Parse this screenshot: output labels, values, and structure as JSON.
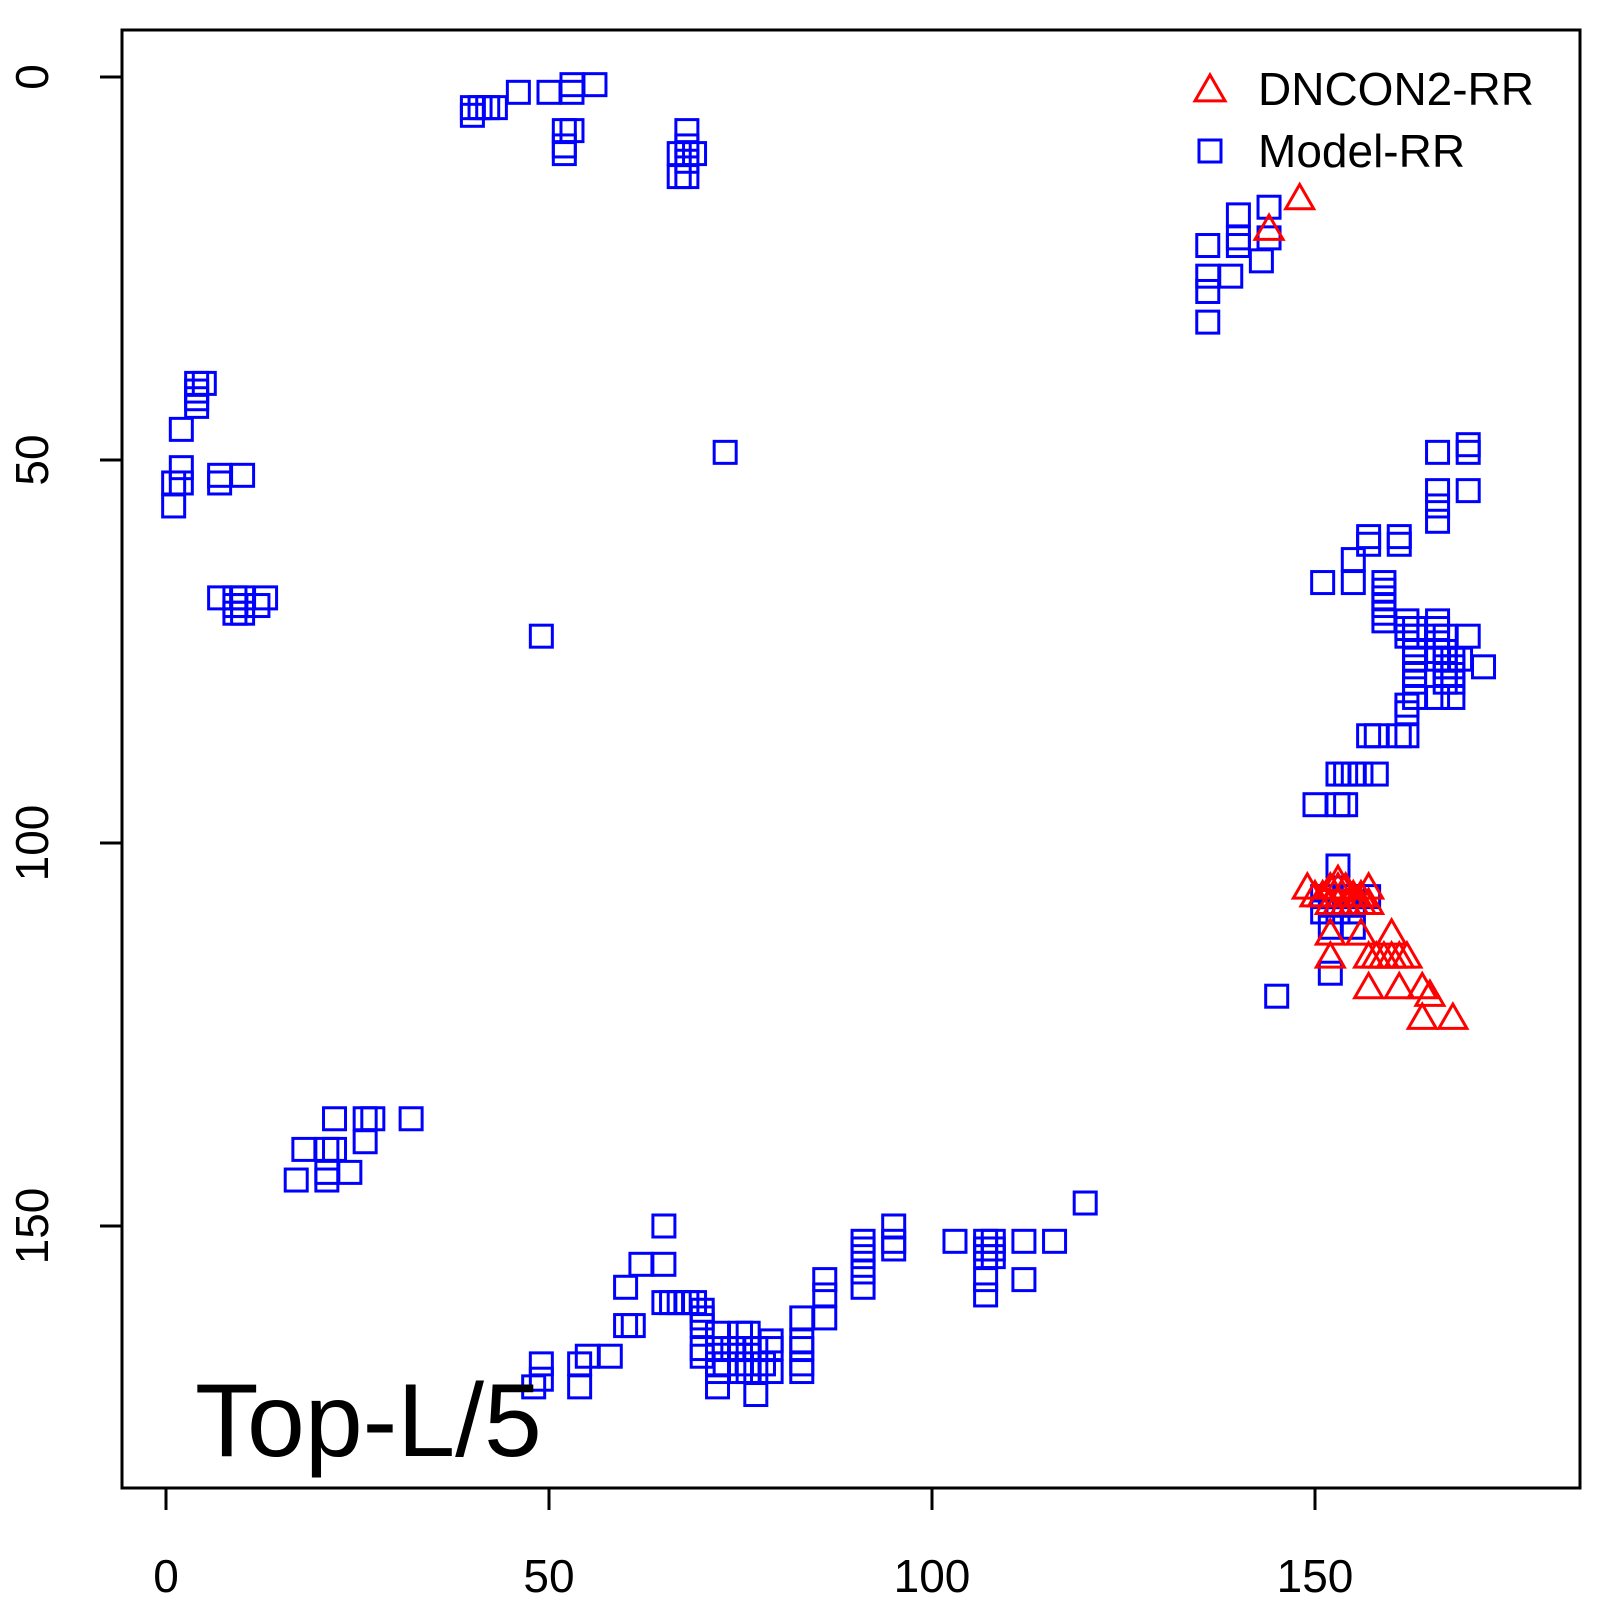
{
  "chart_data": {
    "type": "scatter",
    "title": "",
    "xlabel": "",
    "ylabel": "",
    "xlim": [
      -6,
      184
    ],
    "ylim": [
      184,
      -6
    ],
    "y_axis_inverted": true,
    "xticks": [
      0,
      50,
      100,
      150
    ],
    "yticks": [
      0,
      50,
      100,
      150
    ],
    "xtick_labels": [
      "0",
      "50",
      "100",
      "150"
    ],
    "ytick_labels": [
      "0",
      "50",
      "100",
      "150"
    ],
    "grid": false,
    "legend_position": "top-right",
    "annotation": "Top-L/5",
    "series": [
      {
        "name": "DNCON2-RR",
        "marker": "triangle",
        "color": "#ff0000",
        "points": [
          [
            148,
            16
          ],
          [
            144,
            20
          ],
          [
            149,
            106
          ],
          [
            150,
            107
          ],
          [
            151,
            107
          ],
          [
            152,
            106
          ],
          [
            153,
            105
          ],
          [
            153,
            106
          ],
          [
            154,
            106
          ],
          [
            155,
            107
          ],
          [
            156,
            107
          ],
          [
            157,
            106
          ],
          [
            152,
            108
          ],
          [
            153,
            108
          ],
          [
            154,
            108
          ],
          [
            155,
            108
          ],
          [
            156,
            108
          ],
          [
            157,
            108
          ],
          [
            152,
            112
          ],
          [
            156,
            112
          ],
          [
            160,
            112
          ],
          [
            152,
            115
          ],
          [
            157,
            115
          ],
          [
            158,
            115
          ],
          [
            159,
            115
          ],
          [
            160,
            115
          ],
          [
            161,
            115
          ],
          [
            162,
            115
          ],
          [
            157,
            119
          ],
          [
            161,
            119
          ],
          [
            164,
            119
          ],
          [
            165,
            120
          ],
          [
            164,
            123
          ],
          [
            168,
            123
          ]
        ]
      },
      {
        "name": "Model-RR",
        "marker": "square",
        "color": "#0000ff",
        "points": [
          [
            40,
            4
          ],
          [
            41,
            4
          ],
          [
            42,
            4
          ],
          [
            43,
            4
          ],
          [
            40,
            5
          ],
          [
            46,
            2
          ],
          [
            50,
            2
          ],
          [
            53,
            1
          ],
          [
            53,
            2
          ],
          [
            56,
            1
          ],
          [
            52,
            7
          ],
          [
            53,
            7
          ],
          [
            52,
            9
          ],
          [
            52,
            10
          ],
          [
            68,
            7
          ],
          [
            68,
            9
          ],
          [
            67,
            10
          ],
          [
            69,
            10
          ],
          [
            68,
            11
          ],
          [
            67,
            13
          ],
          [
            68,
            13
          ],
          [
            144,
            17
          ],
          [
            140,
            18
          ],
          [
            140,
            21
          ],
          [
            144,
            21
          ],
          [
            136,
            22
          ],
          [
            140,
            22
          ],
          [
            143,
            24
          ],
          [
            136,
            26
          ],
          [
            139,
            26
          ],
          [
            136,
            28
          ],
          [
            136,
            32
          ],
          [
            4,
            40
          ],
          [
            5,
            40
          ],
          [
            4,
            41
          ],
          [
            4,
            42
          ],
          [
            4,
            43
          ],
          [
            2,
            46
          ],
          [
            2,
            51
          ],
          [
            1,
            53
          ],
          [
            2,
            53
          ],
          [
            1,
            56
          ],
          [
            7,
            52
          ],
          [
            7,
            53
          ],
          [
            10,
            52
          ],
          [
            7,
            68
          ],
          [
            9,
            68
          ],
          [
            10,
            68
          ],
          [
            13,
            68
          ],
          [
            9,
            69
          ],
          [
            10,
            69
          ],
          [
            12,
            69
          ],
          [
            9,
            70
          ],
          [
            10,
            70
          ],
          [
            73,
            49
          ],
          [
            49,
            73
          ],
          [
            170,
            48
          ],
          [
            170,
            49
          ],
          [
            166,
            49
          ],
          [
            166,
            54
          ],
          [
            170,
            54
          ],
          [
            166,
            56
          ],
          [
            166,
            58
          ],
          [
            157,
            60
          ],
          [
            161,
            60
          ],
          [
            157,
            61
          ],
          [
            161,
            61
          ],
          [
            155,
            63
          ],
          [
            151,
            66
          ],
          [
            155,
            66
          ],
          [
            159,
            66
          ],
          [
            159,
            67
          ],
          [
            159,
            68
          ],
          [
            159,
            69
          ],
          [
            159,
            70
          ],
          [
            159,
            71
          ],
          [
            162,
            71
          ],
          [
            166,
            71
          ],
          [
            162,
            72
          ],
          [
            163,
            72
          ],
          [
            166,
            72
          ],
          [
            162,
            73
          ],
          [
            163,
            73
          ],
          [
            166,
            73
          ],
          [
            167,
            73
          ],
          [
            170,
            73
          ],
          [
            163,
            75
          ],
          [
            166,
            75
          ],
          [
            167,
            75
          ],
          [
            163,
            76
          ],
          [
            166,
            76
          ],
          [
            167,
            76
          ],
          [
            168,
            76
          ],
          [
            169,
            76
          ],
          [
            163,
            77
          ],
          [
            167,
            77
          ],
          [
            168,
            77
          ],
          [
            172,
            77
          ],
          [
            163,
            78
          ],
          [
            167,
            78
          ],
          [
            168,
            78
          ],
          [
            163,
            79
          ],
          [
            167,
            79
          ],
          [
            168,
            79
          ],
          [
            163,
            81
          ],
          [
            166,
            81
          ],
          [
            168,
            81
          ],
          [
            162,
            82
          ],
          [
            162,
            83
          ],
          [
            157,
            86
          ],
          [
            158,
            86
          ],
          [
            161,
            86
          ],
          [
            162,
            86
          ],
          [
            153,
            91
          ],
          [
            154,
            91
          ],
          [
            155,
            91
          ],
          [
            156,
            91
          ],
          [
            158,
            91
          ],
          [
            150,
            95
          ],
          [
            153,
            95
          ],
          [
            154,
            95
          ],
          [
            153,
            103
          ],
          [
            151,
            107
          ],
          [
            152,
            107
          ],
          [
            154,
            107
          ],
          [
            155,
            107
          ],
          [
            157,
            107
          ],
          [
            151,
            109
          ],
          [
            153,
            109
          ],
          [
            155,
            109
          ],
          [
            152,
            111
          ],
          [
            155,
            111
          ],
          [
            152,
            117
          ],
          [
            145,
            120
          ],
          [
            22,
            136
          ],
          [
            26,
            136
          ],
          [
            27,
            136
          ],
          [
            32,
            136
          ],
          [
            26,
            139
          ],
          [
            18,
            140
          ],
          [
            21,
            140
          ],
          [
            22,
            140
          ],
          [
            21,
            143
          ],
          [
            24,
            143
          ],
          [
            17,
            144
          ],
          [
            21,
            144
          ],
          [
            120,
            147
          ],
          [
            65,
            150
          ],
          [
            95,
            150
          ],
          [
            91,
            152
          ],
          [
            95,
            152
          ],
          [
            103,
            152
          ],
          [
            107,
            152
          ],
          [
            108,
            152
          ],
          [
            112,
            152
          ],
          [
            116,
            152
          ],
          [
            91,
            153
          ],
          [
            95,
            153
          ],
          [
            107,
            153
          ],
          [
            108,
            153
          ],
          [
            91,
            154
          ],
          [
            107,
            154
          ],
          [
            108,
            154
          ],
          [
            62,
            155
          ],
          [
            65,
            155
          ],
          [
            91,
            156
          ],
          [
            86,
            157
          ],
          [
            107,
            157
          ],
          [
            112,
            157
          ],
          [
            91,
            158
          ],
          [
            60,
            158
          ],
          [
            86,
            159
          ],
          [
            107,
            159
          ],
          [
            65,
            160
          ],
          [
            66,
            160
          ],
          [
            67,
            160
          ],
          [
            68,
            160
          ],
          [
            69,
            160
          ],
          [
            70,
            161
          ],
          [
            70,
            162
          ],
          [
            83,
            162
          ],
          [
            86,
            162
          ],
          [
            60,
            163
          ],
          [
            61,
            163
          ],
          [
            70,
            163
          ],
          [
            72,
            164
          ],
          [
            75,
            164
          ],
          [
            76,
            164
          ],
          [
            79,
            165
          ],
          [
            83,
            165
          ],
          [
            70,
            166
          ],
          [
            72,
            166
          ],
          [
            74,
            166
          ],
          [
            75,
            166
          ],
          [
            76,
            166
          ],
          [
            77,
            166
          ],
          [
            79,
            166
          ],
          [
            83,
            166
          ],
          [
            55,
            167
          ],
          [
            58,
            167
          ],
          [
            70,
            167
          ],
          [
            49,
            168
          ],
          [
            54,
            168
          ],
          [
            72,
            168
          ],
          [
            73,
            168
          ],
          [
            76,
            168
          ],
          [
            78,
            168
          ],
          [
            83,
            168
          ],
          [
            72,
            169
          ],
          [
            75,
            169
          ],
          [
            76,
            169
          ],
          [
            77,
            169
          ],
          [
            79,
            169
          ],
          [
            83,
            169
          ],
          [
            49,
            170
          ],
          [
            48,
            171
          ],
          [
            72,
            171
          ],
          [
            54,
            171
          ],
          [
            77,
            172
          ]
        ]
      }
    ]
  }
}
